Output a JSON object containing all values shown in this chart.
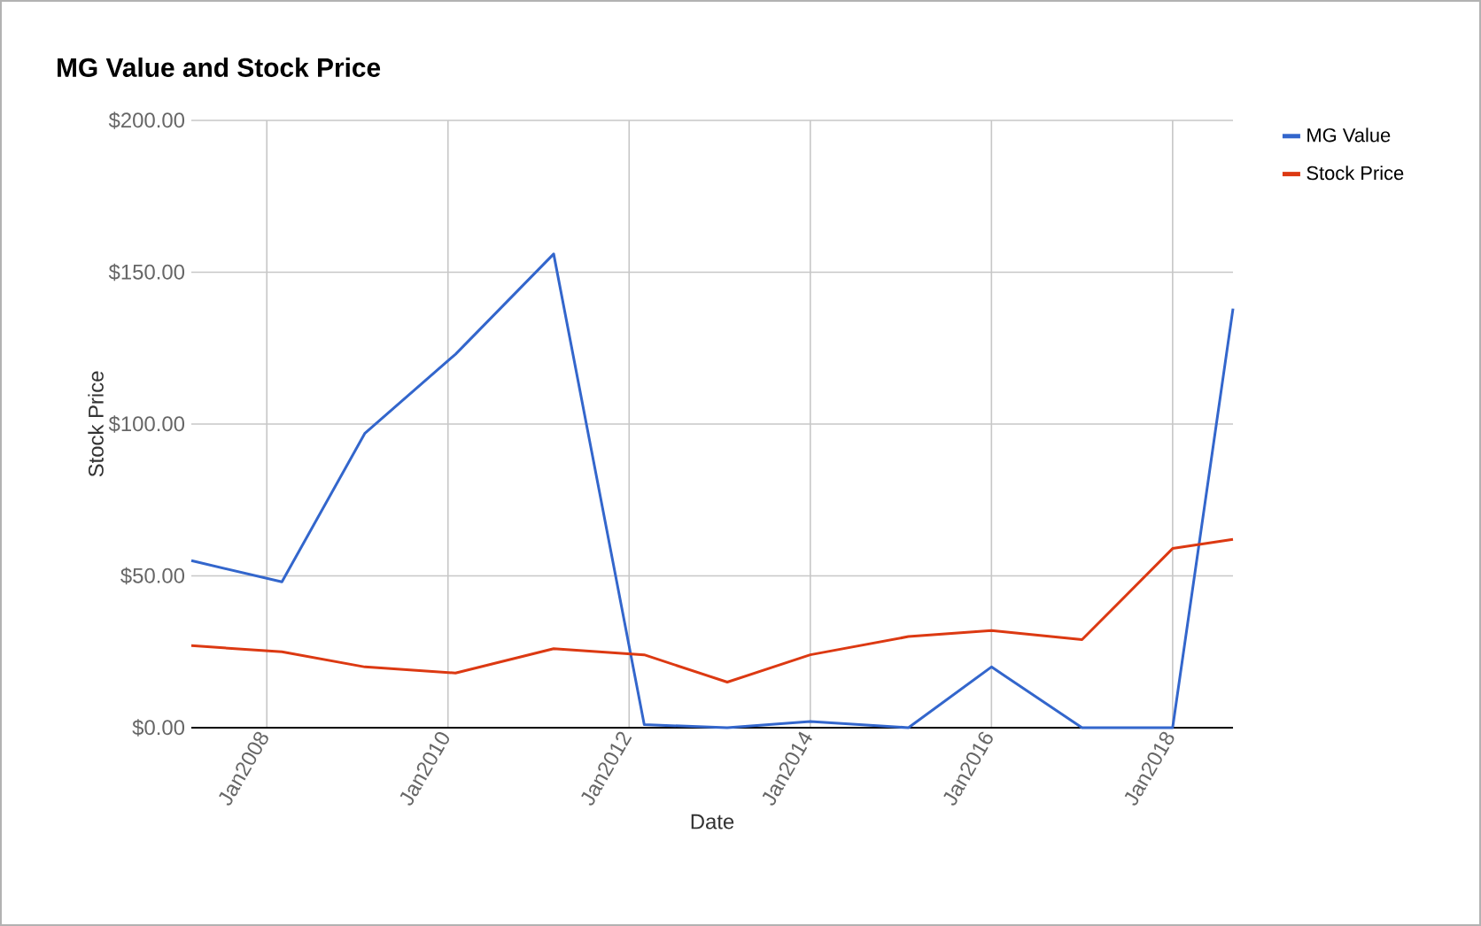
{
  "chart_data": {
    "type": "line",
    "title": "MG Value and Stock Price",
    "xlabel": "Date",
    "ylabel": "Stock Price",
    "x": [
      "2007-03",
      "2008-03",
      "2009-02",
      "2010-02",
      "2011-03",
      "2012-03",
      "2013-02",
      "2014-01",
      "2015-02",
      "2016-01",
      "2017-01",
      "2018-01",
      "2018-09"
    ],
    "series": [
      {
        "name": "MG Value",
        "color": "#3366cc",
        "values": [
          55,
          48,
          97,
          123,
          156,
          1,
          0,
          2,
          0,
          20,
          0,
          0,
          138
        ]
      },
      {
        "name": "Stock Price",
        "color": "#dc3912",
        "values": [
          27,
          25,
          20,
          18,
          26,
          24,
          15,
          24,
          30,
          32,
          29,
          59,
          62
        ]
      }
    ],
    "xlim": [
      "2007-03",
      "2018-09"
    ],
    "xticks": [
      {
        "value": "2008-01",
        "label": "Jan2008"
      },
      {
        "value": "2010-01",
        "label": "Jan2010"
      },
      {
        "value": "2012-01",
        "label": "Jan2012"
      },
      {
        "value": "2014-01",
        "label": "Jan2014"
      },
      {
        "value": "2016-01",
        "label": "Jan2016"
      },
      {
        "value": "2018-01",
        "label": "Jan2018"
      }
    ],
    "ylim": [
      0,
      200
    ],
    "yticks": [
      {
        "value": 0,
        "label": "$0.00"
      },
      {
        "value": 50,
        "label": "$50.00"
      },
      {
        "value": 100,
        "label": "$100.00"
      },
      {
        "value": 150,
        "label": "$150.00"
      },
      {
        "value": 200,
        "label": "$200.00"
      }
    ],
    "grid": true,
    "legend": "top right",
    "marker": "none",
    "line_style": "solid"
  }
}
